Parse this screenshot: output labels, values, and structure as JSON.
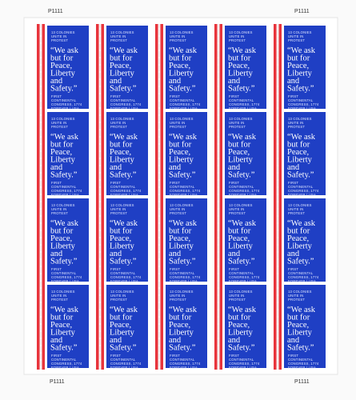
{
  "sheet": {
    "plate_numbers": [
      "P1111",
      "P1111",
      "P1111",
      "P1111"
    ],
    "stamp": {
      "header": [
        "13 COLONIES",
        "UNITE IN",
        "PROTEST"
      ],
      "quote": [
        "“We ask",
        "but for",
        "Peace,",
        "Liberty",
        "and",
        "Safety.”"
      ],
      "footer": [
        "FIRST",
        "CONTINENTAL",
        "CONGRESS, 1774",
        "FOREVER / USA"
      ]
    }
  }
}
